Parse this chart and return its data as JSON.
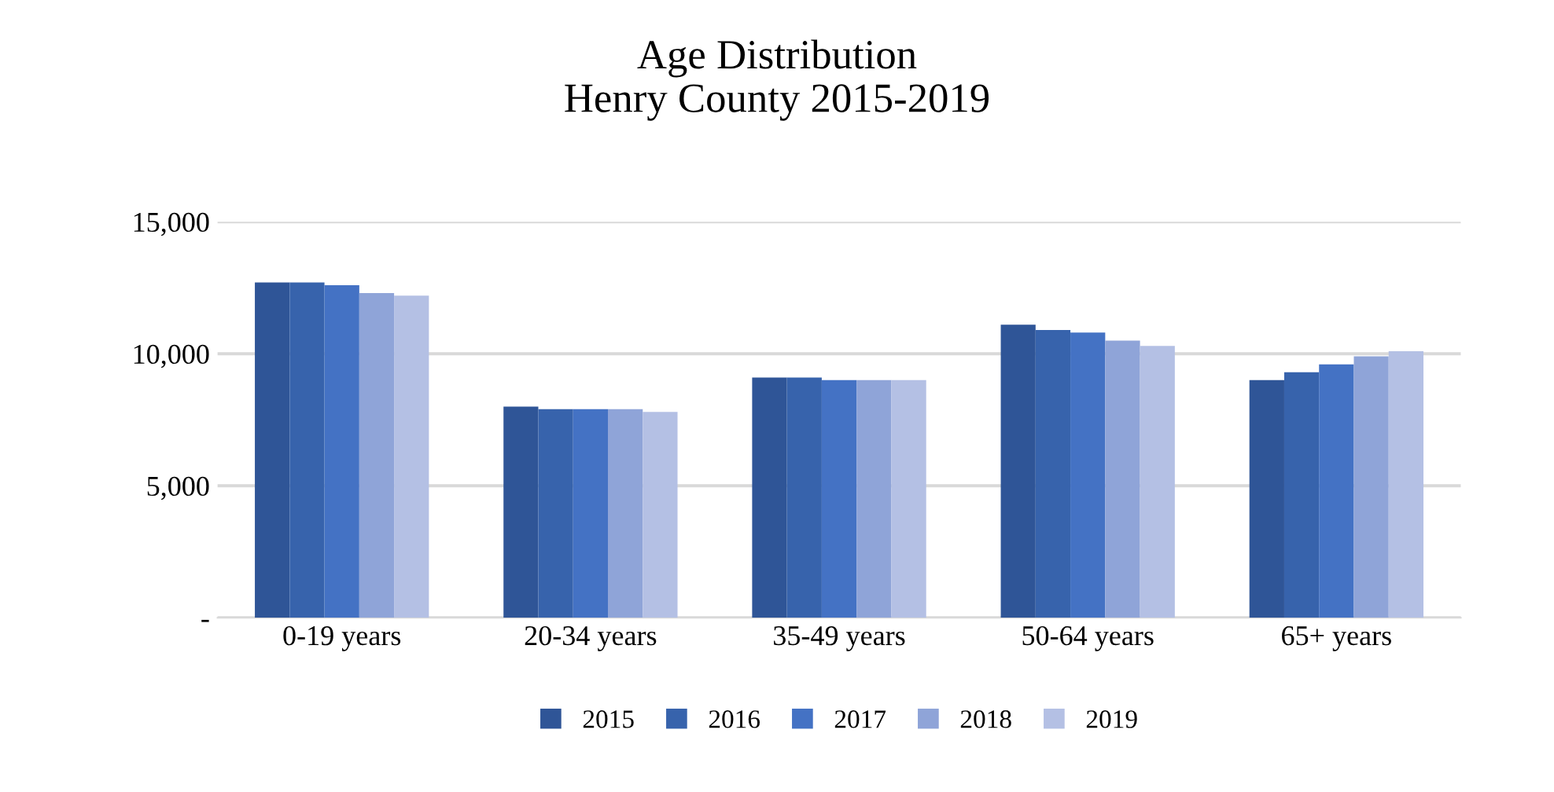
{
  "chart_data": {
    "type": "bar",
    "title": "Age Distribution\nHenry County 2015-2019",
    "categories": [
      "0-19 years",
      "20-34 years",
      "35-49 years",
      "50-64 years",
      "65+ years"
    ],
    "series": [
      {
        "name": "2015",
        "color": "#2f5597",
        "values": [
          12700,
          8000,
          9100,
          11100,
          9000
        ]
      },
      {
        "name": "2016",
        "color": "#3763ac",
        "values": [
          12700,
          7900,
          9100,
          10900,
          9300
        ]
      },
      {
        "name": "2017",
        "color": "#4472c4",
        "values": [
          12600,
          7900,
          9000,
          10800,
          9600
        ]
      },
      {
        "name": "2018",
        "color": "#8fa4d8",
        "values": [
          12300,
          7900,
          9000,
          10500,
          9900
        ]
      },
      {
        "name": "2019",
        "color": "#b4c0e4",
        "values": [
          12200,
          7800,
          9000,
          10300,
          10100
        ]
      }
    ],
    "ylim": [
      0,
      15000
    ],
    "yticks": [
      {
        "value": 0,
        "label": "-"
      },
      {
        "value": 5000,
        "label": "5,000"
      },
      {
        "value": 10000,
        "label": "10,000"
      },
      {
        "value": 15000,
        "label": "15,000"
      }
    ],
    "grid": "y",
    "legend": "bottom"
  }
}
